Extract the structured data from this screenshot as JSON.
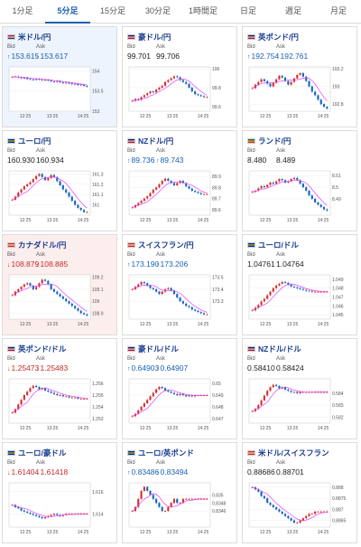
{
  "tabs": [
    {
      "label": "1分足",
      "active": false
    },
    {
      "label": "5分足",
      "active": true
    },
    {
      "label": "15分足",
      "active": false
    },
    {
      "label": "30分足",
      "active": false
    },
    {
      "label": "1時間足",
      "active": false
    },
    {
      "label": "日足",
      "active": false
    },
    {
      "label": "週足",
      "active": false
    },
    {
      "label": "月足",
      "active": false
    }
  ],
  "labels": {
    "bid": "Bid",
    "ask": "Ask"
  },
  "colors": {
    "accent": "#1a5fb4",
    "up_candle": "#d32f2f",
    "down_candle": "#1565c0",
    "ma_line": "#e040fb",
    "up_bg": "#eef4fd",
    "down_bg": "#fdeeee"
  },
  "cards": [
    {
      "name": "米ドル/円",
      "flag": "us",
      "bid": "153.615",
      "ask": "153.617",
      "change": "up",
      "state": "up",
      "ticks": [
        "154",
        "153.5",
        "153"
      ],
      "times": [
        "12:25",
        "13:25",
        "14:25"
      ],
      "chart_data": {
        "type": "candlestick",
        "series": [
          153.85,
          153.86,
          153.84,
          153.82,
          153.83,
          153.8,
          153.79,
          153.78,
          153.8,
          153.79,
          153.77,
          153.78,
          153.76,
          153.74,
          153.73,
          153.75,
          153.72,
          153.7,
          153.71,
          153.69,
          153.67,
          153.68,
          153.65,
          153.66,
          153.63,
          153.61
        ],
        "ylim": [
          153,
          154.1
        ]
      }
    },
    {
      "name": "豪ドル/円",
      "flag": "au",
      "bid": "99.701",
      "ask": "99.706",
      "change": "none",
      "state": "none",
      "ticks": [
        "100",
        "99.8",
        "99.6"
      ],
      "times": [
        "12:25",
        "13:25",
        "14:25"
      ],
      "chart_data": {
        "type": "candlestick",
        "series": [
          99.66,
          99.68,
          99.67,
          99.7,
          99.72,
          99.74,
          99.76,
          99.75,
          99.78,
          99.8,
          99.82,
          99.86,
          99.88,
          99.9,
          99.92,
          99.91,
          99.88,
          99.86,
          99.84,
          99.8,
          99.76,
          99.73,
          99.72,
          99.71,
          99.7,
          99.7
        ],
        "ylim": [
          99.55,
          100.02
        ]
      }
    },
    {
      "name": "英ポンド/円",
      "flag": "gb",
      "bid": "192.754",
      "ask": "192.761",
      "change": "up",
      "state": "none",
      "ticks": [
        "193.2",
        "193",
        "192.8"
      ],
      "times": [
        "12:25",
        "13:25",
        "14:25"
      ],
      "chart_data": {
        "type": "candlestick",
        "series": [
          192.98,
          193.02,
          193.05,
          193.08,
          193.06,
          193.03,
          193.0,
          193.04,
          193.08,
          193.12,
          193.1,
          193.06,
          193.02,
          193.05,
          193.09,
          193.13,
          193.15,
          193.11,
          193.06,
          193.0,
          192.94,
          192.9,
          192.85,
          192.8,
          192.77,
          192.75
        ],
        "ylim": [
          192.72,
          193.22
        ]
      }
    },
    {
      "name": "ユーロ/円",
      "flag": "eu",
      "bid": "160.930",
      "ask": "160.934",
      "change": "none",
      "state": "none",
      "ticks": [
        "161.3",
        "161.2",
        "161.1",
        "161"
      ],
      "times": [
        "12:25",
        "13:25",
        "14:25"
      ],
      "chart_data": {
        "type": "candlestick",
        "series": [
          161.05,
          161.08,
          161.12,
          161.15,
          161.18,
          161.2,
          161.22,
          161.25,
          161.28,
          161.3,
          161.27,
          161.24,
          161.26,
          161.29,
          161.27,
          161.23,
          161.19,
          161.15,
          161.12,
          161.08,
          161.04,
          161.0,
          160.97,
          160.95,
          160.93,
          160.93
        ],
        "ylim": [
          160.9,
          161.33
        ]
      }
    },
    {
      "name": "NZドル/円",
      "flag": "nz",
      "bid": "89.736",
      "ask": "89.743",
      "change": "up",
      "state": "none",
      "ticks": [
        "89.9",
        "89.8",
        "89.7",
        "89.6"
      ],
      "times": [
        "12:25",
        "13:25",
        "14:25"
      ],
      "chart_data": {
        "type": "candlestick",
        "series": [
          89.62,
          89.64,
          89.66,
          89.68,
          89.7,
          89.72,
          89.75,
          89.78,
          89.8,
          89.83,
          89.86,
          89.88,
          89.86,
          89.84,
          89.82,
          89.84,
          89.86,
          89.84,
          89.81,
          89.79,
          89.77,
          89.76,
          89.75,
          89.74,
          89.74,
          89.74
        ],
        "ylim": [
          89.55,
          89.95
        ]
      }
    },
    {
      "name": "ランド/円",
      "flag": "za",
      "bid": "8.480",
      "ask": "8.489",
      "change": "none",
      "state": "none",
      "ticks": [
        "8.51",
        "8.5",
        "8.49"
      ],
      "times": [
        "12:25",
        "13:25",
        "14:25"
      ],
      "chart_data": {
        "type": "candlestick",
        "series": [
          8.496,
          8.497,
          8.499,
          8.501,
          8.5,
          8.502,
          8.504,
          8.503,
          8.505,
          8.507,
          8.506,
          8.504,
          8.505,
          8.507,
          8.508,
          8.506,
          8.503,
          8.5,
          8.497,
          8.493,
          8.49,
          8.487,
          8.485,
          8.483,
          8.481,
          8.48
        ],
        "ylim": [
          8.476,
          8.514
        ]
      }
    },
    {
      "name": "カナダドル/円",
      "flag": "ca",
      "bid": "108.879",
      "ask": "108.885",
      "change": "down",
      "state": "down",
      "ticks": [
        "109.2",
        "109.1",
        "109",
        "108.9"
      ],
      "times": [
        "12:25",
        "13:25",
        "14:25"
      ],
      "chart_data": {
        "type": "candlestick",
        "series": [
          109.05,
          109.08,
          109.1,
          109.12,
          109.14,
          109.15,
          109.13,
          109.1,
          109.12,
          109.15,
          109.18,
          109.17,
          109.14,
          109.1,
          109.08,
          109.06,
          109.04,
          109.02,
          109.0,
          108.98,
          108.96,
          108.94,
          108.92,
          108.9,
          108.89,
          108.88
        ],
        "ylim": [
          108.85,
          109.22
        ]
      }
    },
    {
      "name": "スイスフラン/円",
      "flag": "ch",
      "bid": "173.190",
      "ask": "173.206",
      "change": "up",
      "state": "none",
      "ticks": [
        "173.5",
        "173.4",
        "173.3"
      ],
      "times": [
        "12:25",
        "13:25",
        "14:25"
      ],
      "chart_data": {
        "type": "candlestick",
        "series": [
          173.4,
          173.42,
          173.44,
          173.46,
          173.45,
          173.43,
          173.41,
          173.4,
          173.38,
          173.36,
          173.38,
          173.4,
          173.41,
          173.39,
          173.36,
          173.33,
          173.3,
          173.28,
          173.26,
          173.25,
          173.23,
          173.22,
          173.21,
          173.2,
          173.19,
          173.19
        ],
        "ylim": [
          173.15,
          173.52
        ]
      }
    },
    {
      "name": "ユーロ/ドル",
      "flag": "eu",
      "bid": "1.04761",
      "ask": "1.04764",
      "change": "none",
      "state": "none",
      "ticks": [
        "1.049",
        "1.048",
        "1.047",
        "1.046",
        "1.045"
      ],
      "times": [
        "12:25",
        "13:25",
        "14:25"
      ],
      "chart_data": {
        "type": "candlestick",
        "series": [
          1.0455,
          1.0458,
          1.0461,
          1.0465,
          1.0468,
          1.0472,
          1.0476,
          1.048,
          1.0483,
          1.0485,
          1.0487,
          1.0486,
          1.0484,
          1.0482,
          1.0481,
          1.048,
          1.0479,
          1.0478,
          1.0477,
          1.0477,
          1.0476,
          1.0476,
          1.0476,
          1.0476,
          1.0476,
          1.0476
        ],
        "ylim": [
          1.0445,
          1.0495
        ]
      }
    },
    {
      "name": "英ポンド/ドル",
      "flag": "gb",
      "bid": "1.25473",
      "ask": "1.25483",
      "change": "down",
      "state": "none",
      "ticks": [
        "1.256",
        "1.255",
        "1.254",
        "1.253"
      ],
      "times": [
        "12:25",
        "13:25",
        "14:25"
      ],
      "chart_data": {
        "type": "candlestick",
        "series": [
          1.2535,
          1.2538,
          1.2542,
          1.2546,
          1.255,
          1.2553,
          1.2556,
          1.2558,
          1.2557,
          1.2555,
          1.2556,
          1.2554,
          1.2553,
          1.2552,
          1.2551,
          1.255,
          1.255,
          1.2549,
          1.2549,
          1.2548,
          1.2548,
          1.2548,
          1.2547,
          1.2547,
          1.2547,
          1.2547
        ],
        "ylim": [
          1.2526,
          1.2564
        ]
      }
    },
    {
      "name": "豪ドル/ドル",
      "flag": "au",
      "bid": "0.64903",
      "ask": "0.64907",
      "change": "up",
      "state": "none",
      "ticks": [
        "0.65",
        "0.649",
        "0.648",
        "0.647"
      ],
      "times": [
        "12:25",
        "13:25",
        "14:25"
      ],
      "chart_data": {
        "type": "candlestick",
        "series": [
          0.6472,
          0.6474,
          0.6477,
          0.648,
          0.6483,
          0.6486,
          0.6489,
          0.6492,
          0.6495,
          0.6497,
          0.6496,
          0.6494,
          0.6493,
          0.6492,
          0.6491,
          0.649,
          0.6491,
          0.649,
          0.6489,
          0.649,
          0.6489,
          0.649,
          0.649,
          0.649,
          0.649,
          0.649
        ],
        "ylim": [
          0.6466,
          0.6504
        ]
      }
    },
    {
      "name": "NZドル/ドル",
      "flag": "nz",
      "bid": "0.58410",
      "ask": "0.58424",
      "change": "none",
      "state": "none",
      "ticks": [
        "0.584",
        "0.583",
        "0.582"
      ],
      "times": [
        "12:25",
        "13:25",
        "14:25"
      ],
      "chart_data": {
        "type": "candlestick",
        "series": [
          0.5825,
          0.5827,
          0.583,
          0.5834,
          0.5838,
          0.5842,
          0.5845,
          0.5847,
          0.5846,
          0.5844,
          0.5845,
          0.5843,
          0.5842,
          0.5841,
          0.5841,
          0.584,
          0.5841,
          0.5841,
          0.5841,
          0.5841,
          0.5841,
          0.5841,
          0.5841,
          0.5841,
          0.5841,
          0.5841
        ],
        "ylim": [
          0.5815,
          0.5852
        ]
      }
    },
    {
      "name": "ユーロ/豪ドル",
      "flag": "eu",
      "bid": "1.61404",
      "ask": "1.61418",
      "change": "down",
      "state": "none",
      "ticks": [
        "1.616",
        "1.614"
      ],
      "times": [
        "12:25",
        "13:25",
        "14:25"
      ],
      "chart_data": {
        "type": "candlestick",
        "series": [
          1.6148,
          1.6146,
          1.6145,
          1.6143,
          1.6142,
          1.6141,
          1.614,
          1.6139,
          1.6138,
          1.6137,
          1.6136,
          1.6137,
          1.6138,
          1.6139,
          1.614,
          1.6139,
          1.6138,
          1.6139,
          1.614,
          1.614,
          1.614,
          1.614,
          1.614,
          1.614,
          1.614,
          1.614
        ],
        "ylim": [
          1.6128,
          1.6168
        ]
      }
    },
    {
      "name": "ユーロ/英ポンド",
      "flag": "eu",
      "bid": "0.83486",
      "ask": "0.83494",
      "change": "up",
      "state": "none",
      "ticks": [
        "0.835",
        "0.8348",
        "0.8346"
      ],
      "times": [
        "12:25",
        "13:25",
        "14:25"
      ],
      "chart_data": {
        "type": "candlestick",
        "series": [
          0.8346,
          0.8347,
          0.8349,
          0.8351,
          0.8352,
          0.8351,
          0.835,
          0.8349,
          0.8348,
          0.8347,
          0.8346,
          0.8346,
          0.8347,
          0.8348,
          0.8349,
          0.8348,
          0.8348,
          0.8349,
          0.8349,
          0.8349,
          0.8349,
          0.8349,
          0.8349,
          0.8349,
          0.8349,
          0.8349
        ],
        "ylim": [
          0.8342,
          0.8353
        ]
      }
    },
    {
      "name": "米ドル/スイスフラン",
      "flag": "ch",
      "bid": "0.88686",
      "ask": "0.88701",
      "change": "none",
      "state": "none",
      "ticks": [
        "0.888",
        "0.8875",
        "0.887",
        "0.8865"
      ],
      "times": [
        "12:25",
        "13:25",
        "14:25"
      ],
      "chart_data": {
        "type": "candlestick",
        "series": [
          0.888,
          0.8879,
          0.8878,
          0.8876,
          0.8875,
          0.8873,
          0.8872,
          0.8871,
          0.887,
          0.8869,
          0.8868,
          0.8867,
          0.8866,
          0.8865,
          0.8864,
          0.8864,
          0.8865,
          0.8866,
          0.8867,
          0.8868,
          0.8868,
          0.8869,
          0.8869,
          0.8869,
          0.8869,
          0.8869
        ],
        "ylim": [
          0.8862,
          0.8882
        ]
      }
    }
  ]
}
